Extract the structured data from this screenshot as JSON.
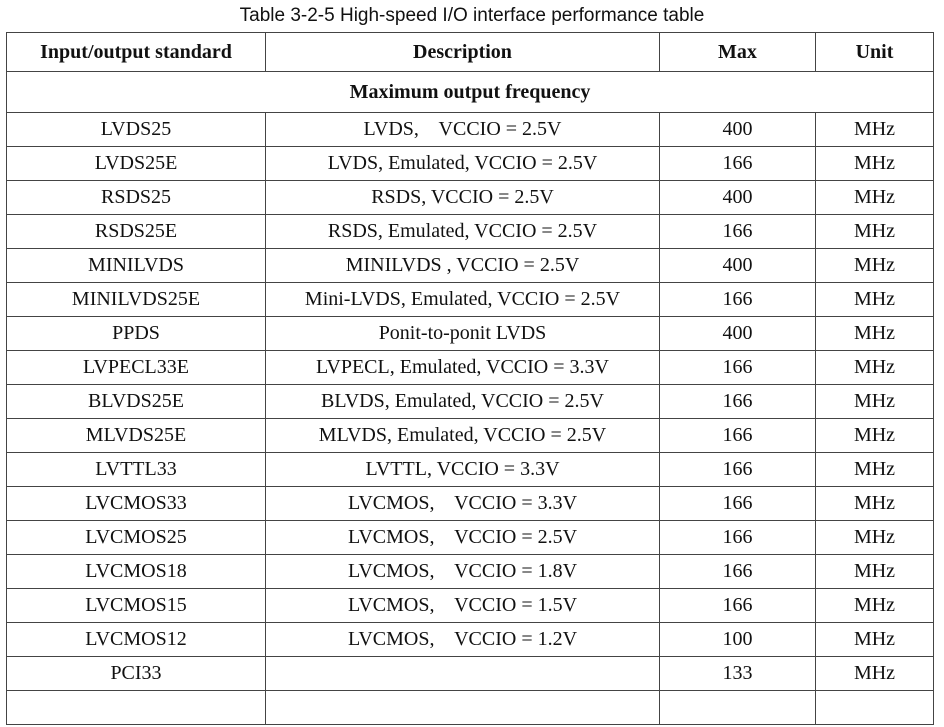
{
  "caption": "Table 3-2-5 High-speed I/O interface performance table",
  "headers": {
    "standard": "Input/output standard",
    "description": "Description",
    "max": "Max",
    "unit": "Unit"
  },
  "section_title": "Maximum output frequency",
  "rows": [
    {
      "standard": "LVDS25",
      "description": "LVDS,    VCCIO = 2.5V",
      "max": "400",
      "unit": "MHz"
    },
    {
      "standard": "LVDS25E",
      "description": "LVDS, Emulated, VCCIO = 2.5V",
      "max": "166",
      "unit": "MHz"
    },
    {
      "standard": "RSDS25",
      "description": "RSDS, VCCIO = 2.5V",
      "max": "400",
      "unit": "MHz"
    },
    {
      "standard": "RSDS25E",
      "description": "RSDS, Emulated, VCCIO = 2.5V",
      "max": "166",
      "unit": "MHz"
    },
    {
      "standard": "MINILVDS",
      "description": "MINILVDS , VCCIO = 2.5V",
      "max": "400",
      "unit": "MHz"
    },
    {
      "standard": "MINILVDS25E",
      "description": "Mini-LVDS, Emulated, VCCIO = 2.5V",
      "max": "166",
      "unit": "MHz"
    },
    {
      "standard": "PPDS",
      "description": "Ponit-to-ponit LVDS",
      "max": "400",
      "unit": "MHz"
    },
    {
      "standard": "LVPECL33E",
      "description": "LVPECL, Emulated, VCCIO = 3.3V",
      "max": "166",
      "unit": "MHz"
    },
    {
      "standard": "BLVDS25E",
      "description": "BLVDS, Emulated, VCCIO = 2.5V",
      "max": "166",
      "unit": "MHz"
    },
    {
      "standard": "MLVDS25E",
      "description": "MLVDS, Emulated, VCCIO = 2.5V",
      "max": "166",
      "unit": "MHz"
    },
    {
      "standard": "LVTTL33",
      "description": "LVTTL, VCCIO = 3.3V",
      "max": "166",
      "unit": "MHz"
    },
    {
      "standard": "LVCMOS33",
      "description": "LVCMOS,    VCCIO = 3.3V",
      "max": "166",
      "unit": "MHz"
    },
    {
      "standard": "LVCMOS25",
      "description": "LVCMOS,    VCCIO = 2.5V",
      "max": "166",
      "unit": "MHz"
    },
    {
      "standard": "LVCMOS18",
      "description": "LVCMOS,    VCCIO = 1.8V",
      "max": "166",
      "unit": "MHz"
    },
    {
      "standard": "LVCMOS15",
      "description": "LVCMOS,    VCCIO = 1.5V",
      "max": "166",
      "unit": "MHz"
    },
    {
      "standard": "LVCMOS12",
      "description": "LVCMOS,    VCCIO = 1.2V",
      "max": "100",
      "unit": "MHz"
    },
    {
      "standard": "PCI33",
      "description": "",
      "max": "133",
      "unit": "MHz"
    },
    {
      "standard": "",
      "description": "",
      "max": "",
      "unit": ""
    }
  ]
}
